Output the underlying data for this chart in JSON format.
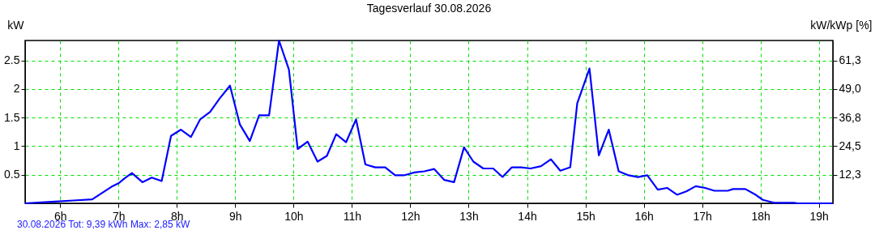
{
  "chart_data": {
    "type": "line",
    "title": "Tagesverlauf 30.08.2026",
    "ylabel": "kW",
    "y2label": "kW/kWp [%]",
    "x": [
      5.4,
      5.91,
      6.23,
      6.55,
      6.88,
      7.0,
      7.11,
      7.23,
      7.41,
      7.57,
      7.74,
      7.9,
      8.07,
      8.24,
      8.4,
      8.57,
      8.73,
      8.91,
      9.08,
      9.25,
      9.41,
      9.58,
      9.75,
      9.92,
      10.07,
      10.24,
      10.41,
      10.57,
      10.73,
      10.9,
      11.07,
      11.23,
      11.4,
      11.57,
      11.74,
      11.89,
      12.07,
      12.24,
      12.41,
      12.58,
      12.75,
      12.92,
      13.08,
      13.25,
      13.42,
      13.58,
      13.74,
      13.9,
      14.06,
      14.24,
      14.41,
      14.57,
      14.74,
      14.86,
      15.07,
      15.23,
      15.4,
      15.57,
      15.74,
      15.9,
      16.06,
      16.24,
      16.4,
      16.57,
      16.73,
      16.89,
      17.05,
      17.21,
      17.44,
      17.53,
      17.74,
      17.9,
      18.04,
      18.23,
      18.57,
      18.64,
      19.24
    ],
    "series": [
      {
        "color": "#0000ff",
        "values": [
          0,
          0.03,
          0.05,
          0.07,
          0.29,
          0.35,
          0.44,
          0.53,
          0.37,
          0.45,
          0.39,
          1.18,
          1.29,
          1.16,
          1.47,
          1.6,
          1.83,
          2.06,
          1.38,
          1.09,
          1.54,
          1.54,
          2.85,
          2.34,
          0.95,
          1.08,
          0.73,
          0.83,
          1.21,
          1.07,
          1.47,
          0.68,
          0.63,
          0.63,
          0.49,
          0.49,
          0.54,
          0.56,
          0.6,
          0.41,
          0.37,
          0.98,
          0.73,
          0.61,
          0.61,
          0.46,
          0.63,
          0.63,
          0.61,
          0.65,
          0.77,
          0.57,
          0.63,
          1.75,
          2.36,
          0.84,
          1.29,
          0.56,
          0.49,
          0.46,
          0.49,
          0.24,
          0.27,
          0.15,
          0.21,
          0.3,
          0.27,
          0.22,
          0.22,
          0.25,
          0.25,
          0.16,
          0.06,
          0.01,
          0.01,
          0,
          0
        ]
      }
    ],
    "xlim": [
      5.4,
      19.24
    ],
    "xticks": [
      {
        "value": 6,
        "label": "6h"
      },
      {
        "value": 7,
        "label": "7h"
      },
      {
        "value": 8,
        "label": "8h"
      },
      {
        "value": 9,
        "label": "9h"
      },
      {
        "value": 10,
        "label": "10h"
      },
      {
        "value": 11,
        "label": "11h"
      },
      {
        "value": 12,
        "label": "12h"
      },
      {
        "value": 13,
        "label": "13h"
      },
      {
        "value": 14,
        "label": "14h"
      },
      {
        "value": 15,
        "label": "15h"
      },
      {
        "value": 16,
        "label": "16h"
      },
      {
        "value": 17,
        "label": "17h"
      },
      {
        "value": 18,
        "label": "18h"
      },
      {
        "value": 19,
        "label": "19h"
      }
    ],
    "ylim": [
      0,
      2.85
    ],
    "yticks": [
      0.5,
      1,
      1.5,
      2,
      2.5
    ],
    "y2lim": [
      0,
      69.8
    ],
    "y2ticks": [
      {
        "value": 12.25,
        "label": "12,3"
      },
      {
        "value": 24.5,
        "label": "24,5"
      },
      {
        "value": 36.75,
        "label": "36,8"
      },
      {
        "value": 49,
        "label": "49,0"
      },
      {
        "value": 61.25,
        "label": "61,3"
      }
    ],
    "grid": true,
    "line_style": "solid",
    "marker": "none",
    "annotations": [
      "30.08.2026 Tot: 9,39 kWh Max: 2,85 kW"
    ]
  }
}
